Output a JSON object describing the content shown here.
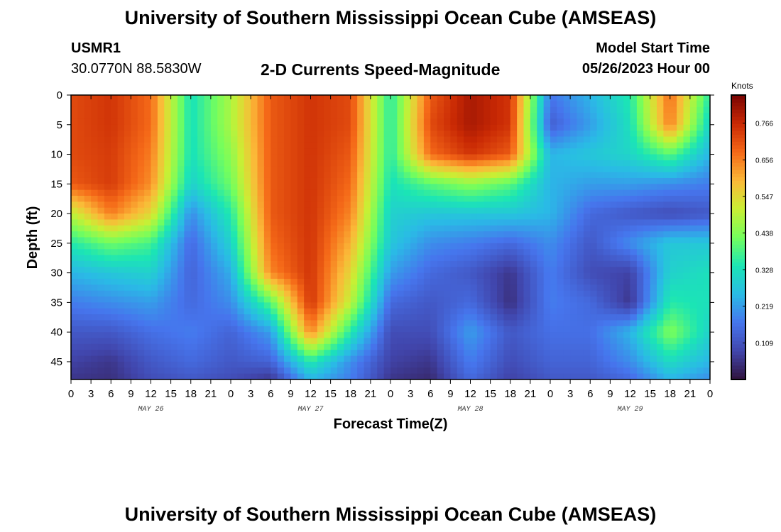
{
  "page": {
    "title": "University of Southern Mississippi Ocean Cube (AMSEAS)",
    "footer_title": "University of Southern Mississippi Ocean Cube (AMSEAS)"
  },
  "header": {
    "station_id": "USMR1",
    "coordinates": "30.0770N  88.5830W",
    "plot_title": "2-D Currents Speed-Magnitude",
    "model_start_label": "Model Start Time",
    "model_start_value": "05/26/2023 Hour 00"
  },
  "chart_data": {
    "type": "heatmap",
    "title": "2-D Currents Speed-Magnitude",
    "xlabel": "Forecast Time(Z)",
    "ylabel": "Depth (ft)",
    "xlim": [
      0,
      96
    ],
    "ylim": [
      0,
      48
    ],
    "x_tick_values": [
      0,
      3,
      6,
      9,
      12,
      15,
      18,
      21,
      24,
      27,
      30,
      33,
      36,
      39,
      42,
      45,
      48,
      51,
      54,
      57,
      60,
      63,
      66,
      69,
      72,
      75,
      78,
      81,
      84,
      87,
      90,
      93,
      96
    ],
    "x_tick_labels": [
      "0",
      "3",
      "6",
      "9",
      "12",
      "15",
      "18",
      "21",
      "0",
      "3",
      "6",
      "9",
      "12",
      "15",
      "18",
      "21",
      "0",
      "3",
      "6",
      "9",
      "12",
      "15",
      "18",
      "21",
      "0",
      "3",
      "6",
      "9",
      "12",
      "15",
      "18",
      "21",
      "0"
    ],
    "y_tick_values": [
      0,
      5,
      10,
      15,
      20,
      25,
      30,
      35,
      40,
      45
    ],
    "y_tick_labels": [
      "0",
      "5",
      "10",
      "15",
      "20",
      "25",
      "30",
      "35",
      "40",
      "45"
    ],
    "day_labels": [
      {
        "text": "MAY 26",
        "hour": 12
      },
      {
        "text": "MAY 27",
        "hour": 36
      },
      {
        "text": "MAY 28",
        "hour": 60
      },
      {
        "text": "MAY 29",
        "hour": 84
      }
    ],
    "colorbar": {
      "units": "Knots",
      "min": 0.0,
      "max": 0.85,
      "ticks": [
        0.109,
        0.219,
        0.328,
        0.438,
        0.547,
        0.656,
        0.766
      ],
      "tick_labels": [
        "0.109",
        "0.219",
        "0.328",
        "0.438",
        "0.547",
        "0.656",
        "0.766"
      ]
    },
    "depths_ft": [
      0,
      5,
      10,
      15,
      20,
      25,
      30,
      35,
      40,
      45,
      48
    ],
    "hours": [
      0,
      6,
      12,
      18,
      24,
      30,
      36,
      42,
      48,
      54,
      60,
      66,
      72,
      78,
      84,
      90,
      96
    ],
    "speed_knots": [
      [
        0.72,
        0.75,
        0.68,
        0.33,
        0.48,
        0.7,
        0.75,
        0.72,
        0.35,
        0.7,
        0.8,
        0.75,
        0.17,
        0.25,
        0.35,
        0.68,
        0.35
      ],
      [
        0.72,
        0.75,
        0.68,
        0.33,
        0.48,
        0.7,
        0.75,
        0.72,
        0.35,
        0.72,
        0.8,
        0.75,
        0.13,
        0.22,
        0.33,
        0.66,
        0.3
      ],
      [
        0.72,
        0.74,
        0.66,
        0.33,
        0.45,
        0.7,
        0.75,
        0.7,
        0.35,
        0.68,
        0.75,
        0.7,
        0.25,
        0.28,
        0.31,
        0.4,
        0.25
      ],
      [
        0.7,
        0.74,
        0.64,
        0.3,
        0.42,
        0.7,
        0.75,
        0.68,
        0.33,
        0.4,
        0.45,
        0.4,
        0.25,
        0.22,
        0.22,
        0.2,
        0.18
      ],
      [
        0.5,
        0.66,
        0.55,
        0.2,
        0.35,
        0.7,
        0.75,
        0.65,
        0.3,
        0.28,
        0.28,
        0.28,
        0.25,
        0.15,
        0.12,
        0.1,
        0.12
      ],
      [
        0.35,
        0.42,
        0.38,
        0.15,
        0.3,
        0.68,
        0.75,
        0.6,
        0.28,
        0.2,
        0.18,
        0.15,
        0.2,
        0.12,
        0.2,
        0.28,
        0.28
      ],
      [
        0.25,
        0.28,
        0.3,
        0.14,
        0.24,
        0.65,
        0.75,
        0.55,
        0.22,
        0.15,
        0.12,
        0.06,
        0.18,
        0.1,
        0.08,
        0.3,
        0.33
      ],
      [
        0.18,
        0.2,
        0.22,
        0.15,
        0.2,
        0.4,
        0.75,
        0.5,
        0.15,
        0.12,
        0.15,
        0.05,
        0.18,
        0.15,
        0.06,
        0.35,
        0.33
      ],
      [
        0.12,
        0.12,
        0.16,
        0.18,
        0.14,
        0.22,
        0.65,
        0.35,
        0.1,
        0.1,
        0.22,
        0.12,
        0.16,
        0.16,
        0.25,
        0.44,
        0.3
      ],
      [
        0.08,
        0.06,
        0.12,
        0.15,
        0.12,
        0.14,
        0.35,
        0.2,
        0.08,
        0.06,
        0.18,
        0.1,
        0.14,
        0.14,
        0.2,
        0.32,
        0.25
      ],
      [
        0.06,
        0.05,
        0.1,
        0.12,
        0.1,
        0.06,
        0.25,
        0.18,
        0.06,
        0.04,
        0.15,
        0.08,
        0.12,
        0.12,
        0.15,
        0.25,
        0.2
      ]
    ]
  }
}
